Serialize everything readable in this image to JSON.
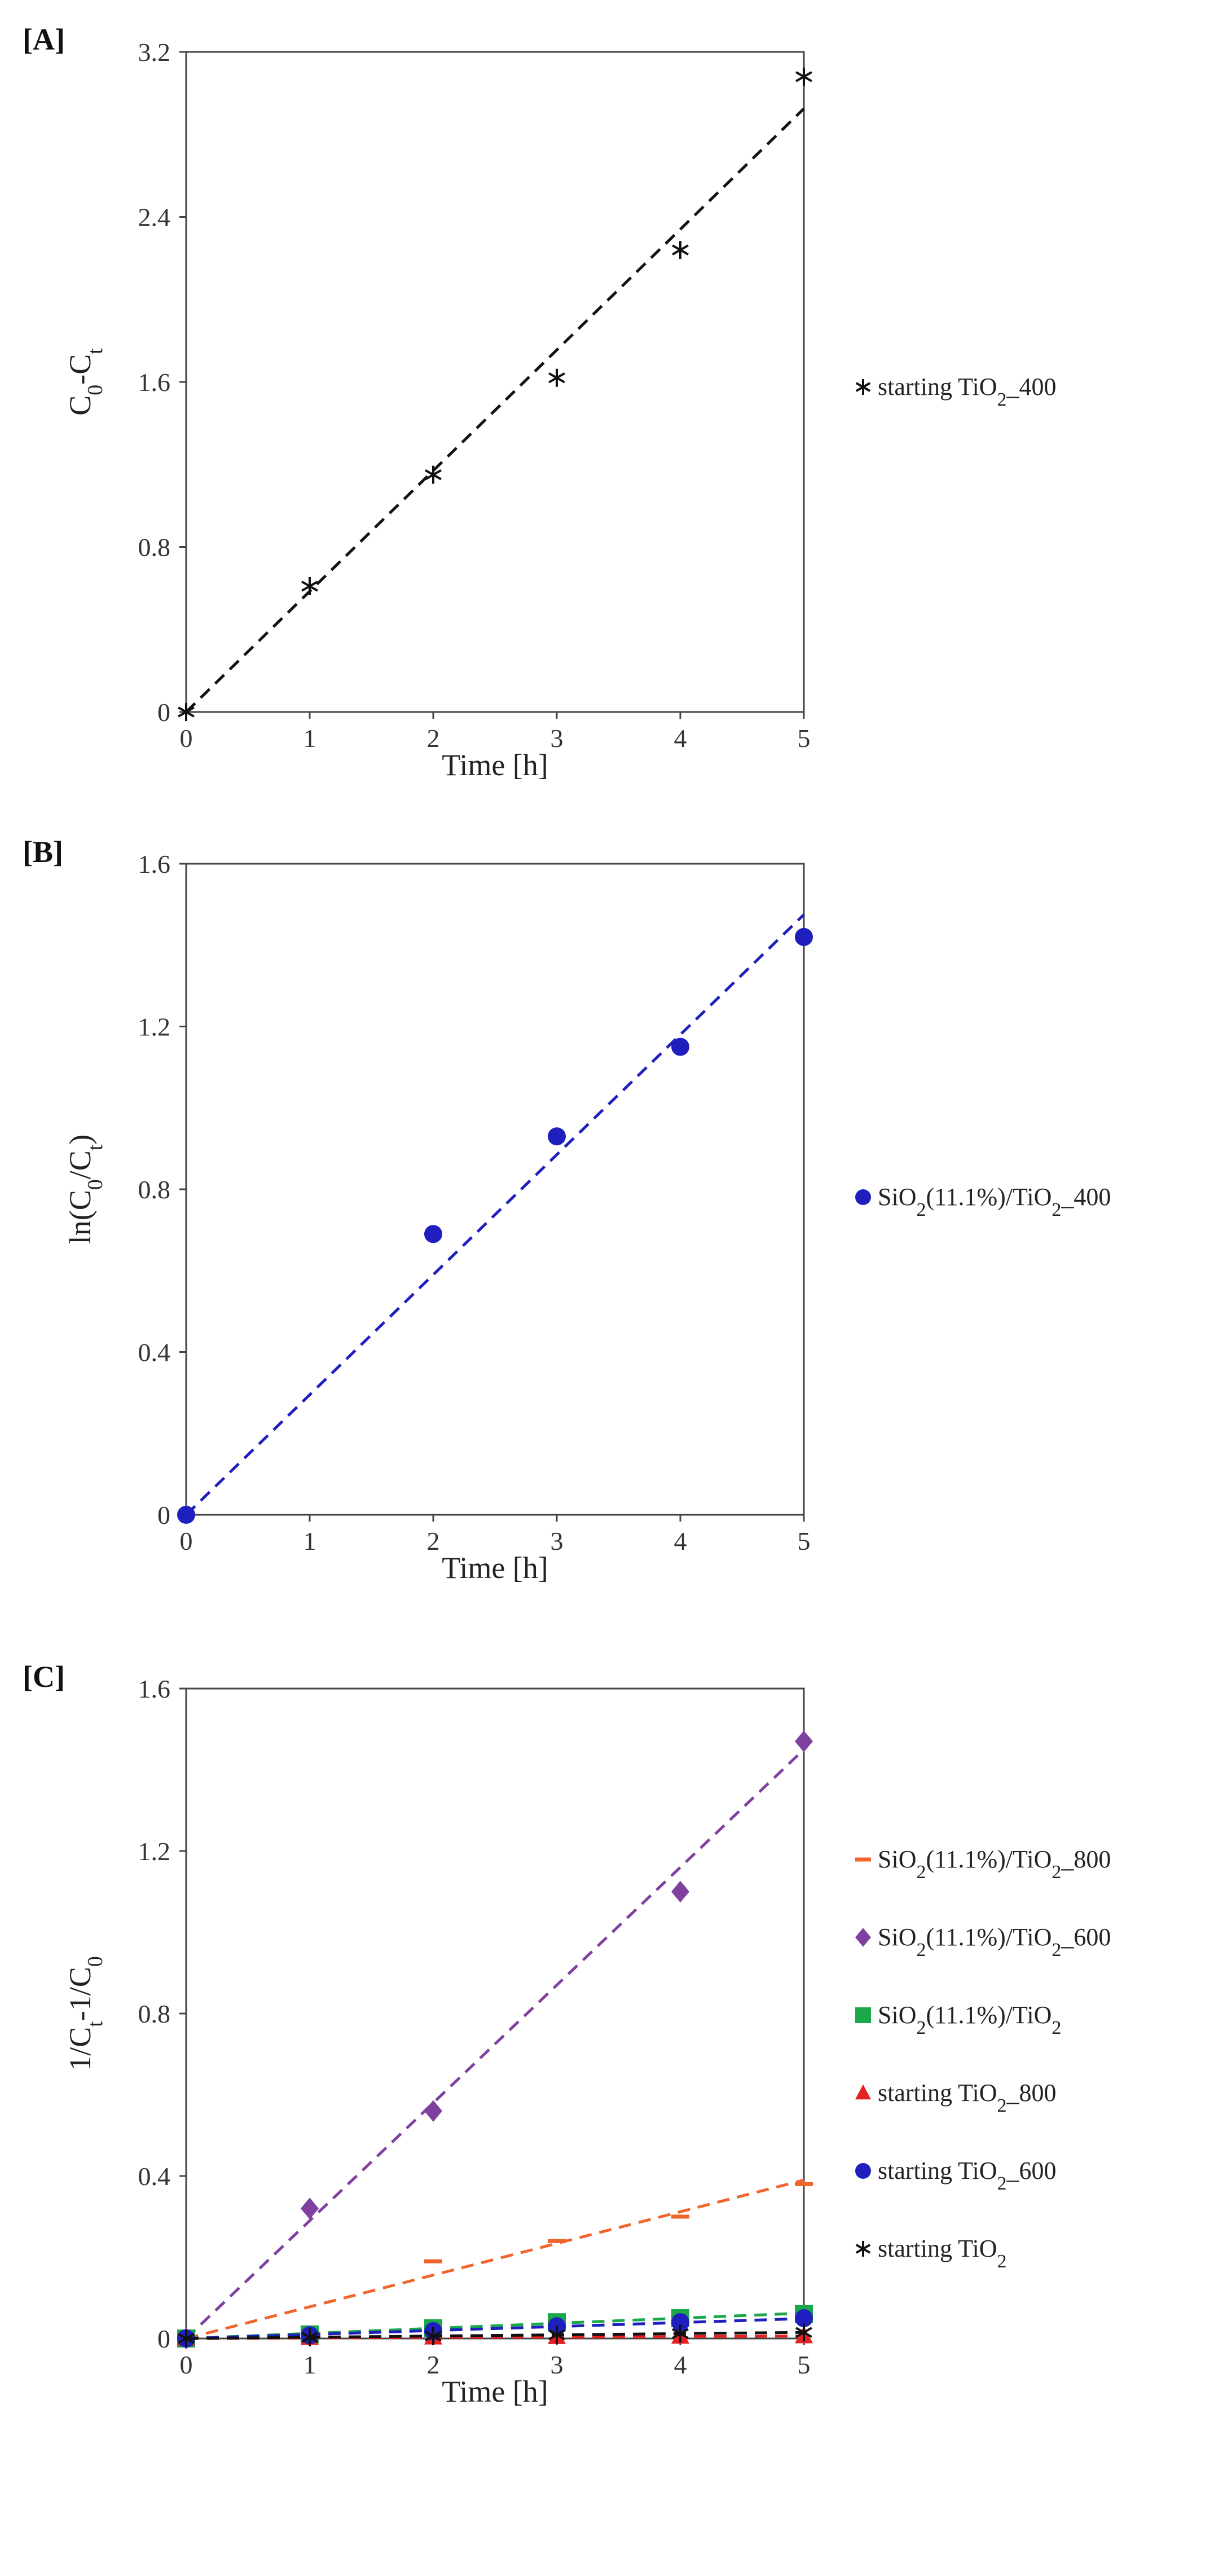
{
  "chart_data": [
    {
      "panel_label": "[A]",
      "type": "scatter",
      "xlabel": "Time [h]",
      "ylabel": {
        "main": "C",
        "sub": "0",
        "mid": "-C",
        "sub2": "t"
      },
      "xlim": [
        0,
        5
      ],
      "ylim": [
        0,
        3.2
      ],
      "xticks": [
        "0",
        "1",
        "2",
        "3",
        "4",
        "5"
      ],
      "yticks": [
        "0",
        "0.8",
        "1.6",
        "2.4",
        "3.2"
      ],
      "legend_position": "right",
      "series": [
        {
          "name": "starting TiO₂_400",
          "color": "#111111",
          "marker": "asterisk",
          "x": [
            0,
            1,
            2,
            3,
            4,
            5
          ],
          "y": [
            0,
            0.61,
            1.15,
            1.62,
            2.24,
            3.08
          ],
          "trend": {
            "slope": 0.585,
            "dash": "black"
          }
        }
      ]
    },
    {
      "panel_label": "[B]",
      "type": "scatter",
      "xlabel": "Time [h]",
      "ylabel": {
        "main": "ln(C",
        "sub": "0",
        "mid": "/C",
        "sub2": "t",
        "end": ")"
      },
      "xlim": [
        0,
        5
      ],
      "ylim": [
        0,
        1.6
      ],
      "xticks": [
        "0",
        "1",
        "2",
        "3",
        "4",
        "5"
      ],
      "yticks": [
        "0",
        "0.4",
        "0.8",
        "1.2",
        "1.6"
      ],
      "legend_position": "right",
      "series": [
        {
          "name": "SiO₂(11.1%)/TiO₂_400",
          "color": "#1f1fbf",
          "marker": "circle",
          "x": [
            0,
            2,
            3,
            4,
            5
          ],
          "y": [
            0,
            0.69,
            0.93,
            1.15,
            1.42
          ],
          "trend": {
            "slope": 0.295
          }
        }
      ]
    },
    {
      "panel_label": "[C]",
      "type": "scatter",
      "xlabel": "Time [h]",
      "ylabel": {
        "main": "1/C",
        "sub": "t",
        "mid": "-1/C",
        "sub2": "0"
      },
      "xlim": [
        0,
        5
      ],
      "ylim": [
        0,
        1.6
      ],
      "xticks": [
        "0",
        "1",
        "2",
        "3",
        "4",
        "5"
      ],
      "yticks": [
        "0",
        "0.4",
        "0.8",
        "1.2",
        "1.6"
      ],
      "legend_position": "right",
      "series": [
        {
          "name": "SiO₂(11.1%)/TiO₂_800",
          "color": "#f0642d",
          "marker": "dash",
          "x": [
            0,
            2,
            3,
            4,
            5
          ],
          "y": [
            0,
            0.19,
            0.24,
            0.3,
            0.38
          ],
          "trend": {
            "slope": 0.078
          }
        },
        {
          "name": "SiO₂(11.1%)/TiO₂_600",
          "color": "#8040a0",
          "marker": "diamond",
          "x": [
            0,
            1,
            2,
            4,
            5
          ],
          "y": [
            0,
            0.32,
            0.56,
            1.1,
            1.47
          ],
          "trend": {
            "slope": 0.29
          }
        },
        {
          "name": "SiO₂(11.1%)/TiO₂",
          "color": "#1aa84a",
          "marker": "square",
          "x": [
            0,
            1,
            2,
            3,
            4,
            5
          ],
          "y": [
            0,
            0.01,
            0.025,
            0.04,
            0.05,
            0.06
          ],
          "trend": {
            "slope": 0.0125
          }
        },
        {
          "name": "starting TiO₂_800",
          "color": "#e52222",
          "marker": "triangle",
          "x": [
            0,
            1,
            2,
            3,
            4,
            5
          ],
          "y": [
            0,
            0.002,
            0.003,
            0.004,
            0.005,
            0.006
          ],
          "trend": {
            "slope": 0.0012
          }
        },
        {
          "name": "starting TiO₂_600",
          "color": "#1f1fbf",
          "marker": "circle",
          "x": [
            0,
            1,
            2,
            3,
            4,
            5
          ],
          "y": [
            0,
            0.008,
            0.018,
            0.03,
            0.04,
            0.05
          ],
          "trend": {
            "slope": 0.0098
          }
        },
        {
          "name": "starting TiO₂",
          "color": "#111111",
          "marker": "asterisk",
          "x": [
            0,
            1,
            2,
            3,
            4,
            5
          ],
          "y": [
            0,
            0.003,
            0.006,
            0.009,
            0.012,
            0.015
          ],
          "trend": {
            "slope": 0.003
          }
        }
      ]
    }
  ]
}
